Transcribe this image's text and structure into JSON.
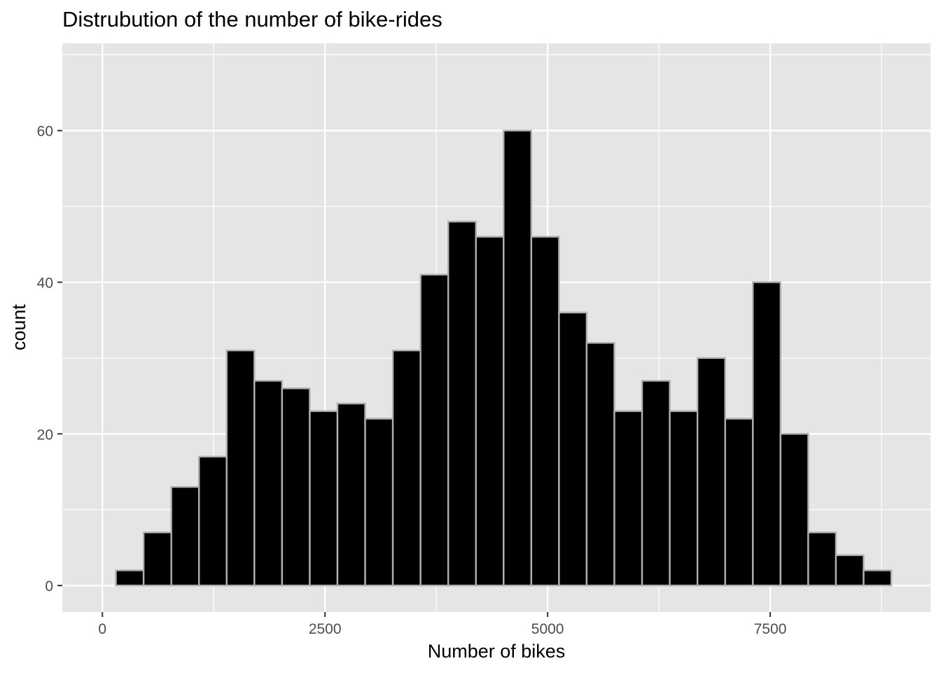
{
  "chart_data": {
    "type": "bar",
    "subtype": "histogram",
    "title": "Distrubution of the number of bike-rides",
    "xlabel": "Number of bikes",
    "ylabel": "count",
    "xlim": [
      -450,
      9300
    ],
    "ylim": [
      -3.5,
      71.5
    ],
    "x_ticks": [
      0,
      2500,
      5000,
      7500
    ],
    "x_tick_labels": [
      "0",
      "2500",
      "5000",
      "7500"
    ],
    "x_minor_ticks": [
      1250,
      3750,
      6250,
      8750
    ],
    "y_ticks": [
      0,
      20,
      40,
      60
    ],
    "y_tick_labels": [
      "0",
      "20",
      "40",
      "60"
    ],
    "y_minor_ticks": [
      10,
      30,
      50,
      70
    ],
    "grid": true,
    "legend": "none",
    "colors": {
      "panel_background": "#e5e5e5",
      "grid": "#ffffff",
      "bar_fill": "#000000",
      "bar_outline": "#b0b0b0",
      "text": "#000000",
      "tick_text": "#4d4d4d",
      "tick_mark": "#333333"
    },
    "bins": [
      {
        "x0": 152,
        "x1": 463,
        "count": 2
      },
      {
        "x0": 463,
        "x1": 774,
        "count": 7
      },
      {
        "x0": 774,
        "x1": 1085,
        "count": 13
      },
      {
        "x0": 1085,
        "x1": 1396,
        "count": 17
      },
      {
        "x0": 1396,
        "x1": 1707,
        "count": 31
      },
      {
        "x0": 1707,
        "x1": 2018,
        "count": 27
      },
      {
        "x0": 2018,
        "x1": 2329,
        "count": 26
      },
      {
        "x0": 2329,
        "x1": 2640,
        "count": 23
      },
      {
        "x0": 2640,
        "x1": 2951,
        "count": 24
      },
      {
        "x0": 2951,
        "x1": 3262,
        "count": 22
      },
      {
        "x0": 3262,
        "x1": 3573,
        "count": 31
      },
      {
        "x0": 3573,
        "x1": 3884,
        "count": 41
      },
      {
        "x0": 3884,
        "x1": 4195,
        "count": 48
      },
      {
        "x0": 4195,
        "x1": 4506,
        "count": 46
      },
      {
        "x0": 4506,
        "x1": 4817,
        "count": 60
      },
      {
        "x0": 4817,
        "x1": 5128,
        "count": 46
      },
      {
        "x0": 5128,
        "x1": 5439,
        "count": 36
      },
      {
        "x0": 5439,
        "x1": 5750,
        "count": 32
      },
      {
        "x0": 5750,
        "x1": 6061,
        "count": 23
      },
      {
        "x0": 6061,
        "x1": 6372,
        "count": 27
      },
      {
        "x0": 6372,
        "x1": 6683,
        "count": 23
      },
      {
        "x0": 6683,
        "x1": 6994,
        "count": 30
      },
      {
        "x0": 6994,
        "x1": 7305,
        "count": 22
      },
      {
        "x0": 7305,
        "x1": 7616,
        "count": 40
      },
      {
        "x0": 7616,
        "x1": 7927,
        "count": 20
      },
      {
        "x0": 7927,
        "x1": 8238,
        "count": 7
      },
      {
        "x0": 8238,
        "x1": 8549,
        "count": 4
      },
      {
        "x0": 8549,
        "x1": 8860,
        "count": 2
      }
    ]
  }
}
